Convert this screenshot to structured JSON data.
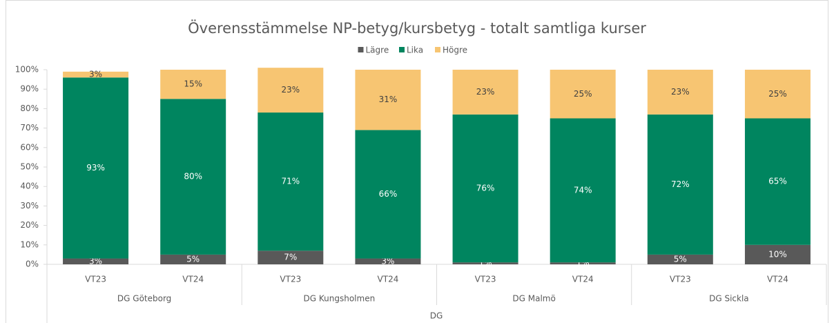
{
  "chart_data": {
    "type": "stacked_bar",
    "title": "Överensstämmelse NP-betyg/kursbetyg - totalt samtliga kurser",
    "x_label": "DG",
    "categories": [
      "VT23",
      "VT24",
      "VT23",
      "VT24",
      "VT23",
      "VT24",
      "VT23",
      "VT24"
    ],
    "groups": [
      "DG Göteborg",
      "DG Kungsholmen",
      "DG Malmö",
      "DG Sickla"
    ],
    "series": [
      {
        "name": "Lägre",
        "color": "#595959",
        "values": [
          3,
          5,
          7,
          3,
          1,
          1,
          5,
          10
        ],
        "value_labels": [
          "3%",
          "5%",
          "7%",
          "3%",
          "1%",
          "1%",
          "5%",
          "10%"
        ]
      },
      {
        "name": "Lika",
        "color": "#00855f",
        "values": [
          93,
          80,
          71,
          66,
          76,
          74,
          72,
          65
        ],
        "value_labels": [
          "93%",
          "80%",
          "71%",
          "66%",
          "76%",
          "74%",
          "72%",
          "65%"
        ]
      },
      {
        "name": "Högre",
        "color": "#f7c572",
        "values": [
          3,
          15,
          23,
          31,
          23,
          25,
          23,
          25
        ],
        "value_labels": [
          "3%",
          "15%",
          "23%",
          "31%",
          "23%",
          "25%",
          "23%",
          "25%"
        ]
      }
    ],
    "ylim": [
      0,
      100
    ],
    "yticks": [
      {
        "value": 0,
        "label": "0%"
      },
      {
        "value": 10,
        "label": "10%"
      },
      {
        "value": 20,
        "label": "20%"
      },
      {
        "value": 30,
        "label": "30%"
      },
      {
        "value": 40,
        "label": "40%"
      },
      {
        "value": 50,
        "label": "50%"
      },
      {
        "value": 60,
        "label": "60%"
      },
      {
        "value": 70,
        "label": "70%"
      },
      {
        "value": 80,
        "label": "80%"
      },
      {
        "value": 90,
        "label": "90%"
      },
      {
        "value": 100,
        "label": "100%"
      }
    ],
    "grid": false,
    "legend": "top"
  }
}
